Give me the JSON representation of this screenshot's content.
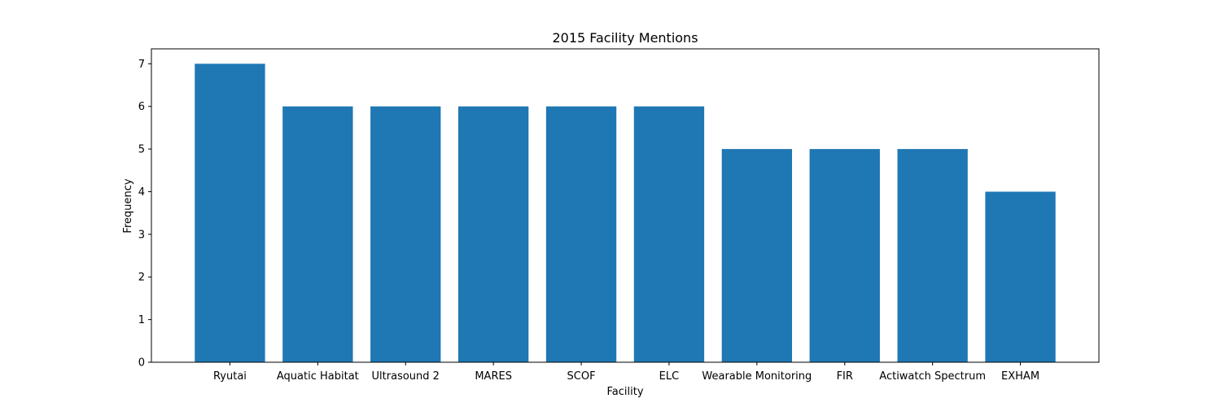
{
  "chart_data": {
    "type": "bar",
    "title": "2015 Facility Mentions",
    "xlabel": "Facility",
    "ylabel": "Frequency",
    "categories": [
      "Ryutai",
      "Aquatic Habitat",
      "Ultrasound 2",
      "MARES",
      "SCOF",
      "ELC",
      "Wearable Monitoring",
      "FIR",
      "Actiwatch Spectrum",
      "EXHAM"
    ],
    "values": [
      7,
      6,
      6,
      6,
      6,
      6,
      5,
      5,
      5,
      4
    ],
    "ylim": [
      0,
      7.35
    ],
    "yticks": [
      0,
      1,
      2,
      3,
      4,
      5,
      6,
      7
    ],
    "bar_color": "#1f77b4",
    "grid": false
  }
}
